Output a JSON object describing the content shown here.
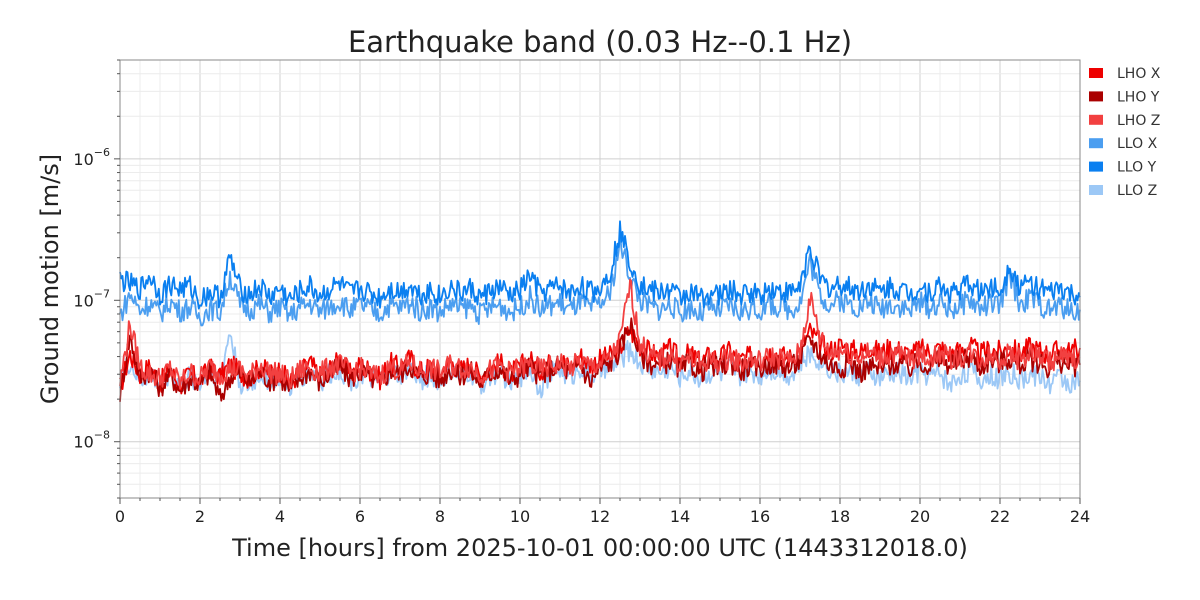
{
  "chart_data": {
    "type": "line",
    "title": "Earthquake band (0.03 Hz--0.1 Hz)",
    "xlabel": "Time [hours] from 2025-10-01 00:00:00 UTC (1443312018.0)",
    "ylabel": "Ground motion [m/s]",
    "xlim": [
      0,
      24
    ],
    "ylim": [
      4e-09,
      5e-06
    ],
    "yscale": "log",
    "x_ticks": [
      0,
      2,
      4,
      6,
      8,
      10,
      12,
      14,
      16,
      18,
      20,
      22,
      24
    ],
    "x_tick_labels": [
      "0",
      "2",
      "4",
      "6",
      "8",
      "10",
      "12",
      "14",
      "16",
      "18",
      "20",
      "22",
      "24"
    ],
    "y_ticks": [
      1e-08,
      1e-07,
      1e-06
    ],
    "y_tick_labels": [
      {
        "base": "10",
        "exp": "−8"
      },
      {
        "base": "10",
        "exp": "−7"
      },
      {
        "base": "10",
        "exp": "−6"
      }
    ],
    "grid": true,
    "legend_position": "outside-right",
    "x": [
      0,
      0.25,
      0.5,
      0.75,
      1,
      1.25,
      1.5,
      1.75,
      2,
      2.25,
      2.5,
      2.75,
      3,
      3.25,
      3.5,
      3.75,
      4,
      4.25,
      4.5,
      4.75,
      5,
      5.25,
      5.5,
      5.75,
      6,
      6.25,
      6.5,
      6.75,
      7,
      7.25,
      7.5,
      7.75,
      8,
      8.25,
      8.5,
      8.75,
      9,
      9.25,
      9.5,
      9.75,
      10,
      10.25,
      10.5,
      10.75,
      11,
      11.25,
      11.5,
      11.75,
      12,
      12.25,
      12.5,
      12.75,
      13,
      13.25,
      13.5,
      13.75,
      14,
      14.25,
      14.5,
      14.75,
      15,
      15.25,
      15.5,
      15.75,
      16,
      16.25,
      16.5,
      16.75,
      17,
      17.25,
      17.5,
      17.75,
      18,
      18.25,
      18.5,
      18.75,
      19,
      19.25,
      19.5,
      19.75,
      20,
      20.25,
      20.5,
      20.75,
      21,
      21.25,
      21.5,
      21.75,
      22,
      22.25,
      22.5,
      22.75,
      23,
      23.25,
      23.5,
      23.75,
      24
    ],
    "series": [
      {
        "name": "LHO X",
        "color": "#ee0000",
        "values": [
          2.4e-08,
          4.2e-08,
          3e-08,
          3.4e-08,
          2.6e-08,
          3.2e-08,
          2.5e-08,
          3e-08,
          2.7e-08,
          3.3e-08,
          2.9e-08,
          3.5e-08,
          3.1e-08,
          2.8e-08,
          3.4e-08,
          3e-08,
          3.2e-08,
          2.6e-08,
          3.1e-08,
          3.6e-08,
          2.9e-08,
          3.3e-08,
          3.8e-08,
          3e-08,
          3.5e-08,
          3.2e-08,
          2.8e-08,
          3.6e-08,
          3.3e-08,
          3.9e-08,
          3.1e-08,
          3.4e-08,
          3e-08,
          3.7e-08,
          3.2e-08,
          3.5e-08,
          2.9e-08,
          3.3e-08,
          3.6e-08,
          3e-08,
          3.4e-08,
          3.8e-08,
          3.2e-08,
          3.6e-08,
          3.9e-08,
          3.3e-08,
          4.1e-08,
          3.5e-08,
          3.8e-08,
          4e-08,
          4.6e-08,
          6.2e-08,
          4.8e-08,
          4.3e-08,
          4e-08,
          4.5e-08,
          3.8e-08,
          4.2e-08,
          3.6e-08,
          4.1e-08,
          3.9e-08,
          4.4e-08,
          3.7e-08,
          4e-08,
          3.8e-08,
          4.3e-08,
          4.1e-08,
          3.9e-08,
          4.5e-08,
          6e-08,
          5e-08,
          4.4e-08,
          4.8e-08,
          4.5e-08,
          4.3e-08,
          4.7e-08,
          4.2e-08,
          4.6e-08,
          4.4e-08,
          4.1e-08,
          4.5e-08,
          4.3e-08,
          4.6e-08,
          4.2e-08,
          4.4e-08,
          4.8e-08,
          4.1e-08,
          4.5e-08,
          4.3e-08,
          4.6e-08,
          4.2e-08,
          4.7e-08,
          4.4e-08,
          4.1e-08,
          4.5e-08,
          4.3e-08,
          4.6e-08
        ]
      },
      {
        "name": "LHO Y",
        "color": "#aa0000",
        "values": [
          2.2e-08,
          5.6e-08,
          2.8e-08,
          3.2e-08,
          2.4e-08,
          3e-08,
          2.3e-08,
          2.8e-08,
          2.5e-08,
          3.1e-08,
          2e-08,
          2.9e-08,
          3e-08,
          2.6e-08,
          3.1e-08,
          2.7e-08,
          2.9e-08,
          2.3e-08,
          2.8e-08,
          3.2e-08,
          2.6e-08,
          3e-08,
          3.4e-08,
          2.8e-08,
          3.1e-08,
          2.9e-08,
          2.5e-08,
          3.2e-08,
          3e-08,
          3.5e-08,
          2.8e-08,
          3.1e-08,
          2.7e-08,
          3.3e-08,
          2.9e-08,
          3.2e-08,
          2.6e-08,
          3e-08,
          3.3e-08,
          2.7e-08,
          3e-08,
          3.4e-08,
          2.9e-08,
          3.2e-08,
          3.5e-08,
          3e-08,
          3.6e-08,
          2.6e-08,
          3.3e-08,
          3.6e-08,
          4.4e-08,
          7e-08,
          4.2e-08,
          3.6e-08,
          3.4e-08,
          3.8e-08,
          3.2e-08,
          3.6e-08,
          3.1e-08,
          3.5e-08,
          3.3e-08,
          3.7e-08,
          3.2e-08,
          3.4e-08,
          3.3e-08,
          3.6e-08,
          3.5e-08,
          3.3e-08,
          3.8e-08,
          5.4e-08,
          4.2e-08,
          3.5e-08,
          3.3e-08,
          3.6e-08,
          3.1e-08,
          3.4e-08,
          3.2e-08,
          3.5e-08,
          3.6e-08,
          3.3e-08,
          3.7e-08,
          3.4e-08,
          3.8e-08,
          3.5e-08,
          3.7e-08,
          4e-08,
          3.4e-08,
          3.8e-08,
          3.6e-08,
          3.9e-08,
          3.5e-08,
          3.8e-08,
          3.6e-08,
          3.3e-08,
          3.7e-08,
          3.4e-08,
          3.5e-08
        ]
      },
      {
        "name": "LHO Z",
        "color": "#f24040",
        "values": [
          2.6e-08,
          6.8e-08,
          3.4e-08,
          3e-08,
          2.8e-08,
          3.3e-08,
          2.6e-08,
          3.1e-08,
          2.8e-08,
          3.4e-08,
          3e-08,
          3.3e-08,
          3.2e-08,
          2.9e-08,
          3.5e-08,
          3.1e-08,
          3e-08,
          2.7e-08,
          3.2e-08,
          3.4e-08,
          3e-08,
          3.4e-08,
          3.5e-08,
          3.1e-08,
          3.3e-08,
          3e-08,
          2.9e-08,
          3.4e-08,
          3.2e-08,
          3.6e-08,
          3.2e-08,
          3.3e-08,
          3.1e-08,
          3.5e-08,
          3.3e-08,
          3.4e-08,
          3e-08,
          3.2e-08,
          3.4e-08,
          3.1e-08,
          3.3e-08,
          3.5e-08,
          3.2e-08,
          3.4e-08,
          3.6e-08,
          3.3e-08,
          3.7e-08,
          3.4e-08,
          3.6e-08,
          3.8e-08,
          5.2e-08,
          1.3e-07,
          5e-08,
          4e-08,
          3.8e-08,
          4.1e-08,
          3.6e-08,
          3.9e-08,
          3.5e-08,
          3.8e-08,
          3.6e-08,
          4e-08,
          3.6e-08,
          3.8e-08,
          3.7e-08,
          4e-08,
          3.9e-08,
          3.7e-08,
          4.3e-08,
          1.05e-07,
          5.5e-08,
          4.2e-08,
          4.5e-08,
          4.2e-08,
          4e-08,
          4.3e-08,
          3.9e-08,
          4.2e-08,
          4.1e-08,
          3.8e-08,
          4.1e-08,
          3.9e-08,
          4.2e-08,
          3.9e-08,
          4e-08,
          4.3e-08,
          3.8e-08,
          4.1e-08,
          3.9e-08,
          4.2e-08,
          3.8e-08,
          4.2e-08,
          4e-08,
          3.7e-08,
          4e-08,
          3.8e-08,
          4e-08
        ]
      },
      {
        "name": "LLO X",
        "color": "#4b9ef0",
        "values": [
          7.8e-08,
          1.1e-07,
          8.5e-08,
          9.6e-08,
          8e-08,
          9.8e-08,
          8.4e-08,
          9e-08,
          7.6e-08,
          8.8e-08,
          8.2e-08,
          1.5e-07,
          9.2e-08,
          8.6e-08,
          9.4e-08,
          8.1e-08,
          9e-08,
          7.8e-08,
          8.9e-08,
          9.5e-08,
          8.3e-08,
          9.1e-08,
          9.8e-08,
          8.5e-08,
          9.2e-08,
          8.7e-08,
          8e-08,
          9.3e-08,
          8.8e-08,
          9.7e-08,
          8.4e-08,
          9e-08,
          8.2e-08,
          9.4e-08,
          8.7e-08,
          9.1e-08,
          8e-08,
          8.8e-08,
          9.3e-08,
          8.3e-08,
          8.9e-08,
          1.05e-07,
          8.6e-08,
          9.2e-08,
          9.6e-08,
          8.5e-08,
          9.8e-08,
          8.7e-08,
          9.4e-08,
          1.1e-07,
          2.6e-07,
          1.5e-07,
          1e-07,
          9e-08,
          8.6e-08,
          9.3e-08,
          8.1e-08,
          8.9e-08,
          8e-08,
          8.7e-08,
          8.4e-08,
          9.2e-08,
          8.2e-08,
          8.8e-08,
          8.5e-08,
          9.4e-08,
          8.9e-08,
          8.6e-08,
          9.7e-08,
          1.9e-07,
          1.1e-07,
          9.3e-08,
          1e-07,
          9.4e-08,
          8.9e-08,
          9.8e-08,
          8.7e-08,
          9.5e-08,
          9.1e-08,
          8.5e-08,
          9.6e-08,
          8.8e-08,
          9.7e-08,
          8.6e-08,
          9.2e-08,
          1e-07,
          8.7e-08,
          9.6e-08,
          9e-08,
          1.5e-07,
          9.4e-08,
          1.05e-07,
          9.3e-08,
          8.5e-08,
          9.2e-08,
          8.3e-08,
          8.6e-08
        ]
      },
      {
        "name": "LLO Y",
        "color": "#0a7ff0",
        "values": [
          1.4e-07,
          1.3e-07,
          1.2e-07,
          1.5e-07,
          1.1e-07,
          1.3e-07,
          1.2e-07,
          1.25e-07,
          1e-07,
          1.15e-07,
          1.05e-07,
          2e-07,
          1.2e-07,
          1.1e-07,
          1.25e-07,
          1.05e-07,
          1.2e-07,
          1e-07,
          1.15e-07,
          1.25e-07,
          1.08e-07,
          1.2e-07,
          1.3e-07,
          1.1e-07,
          1.2e-07,
          1.12e-07,
          1.04e-07,
          1.22e-07,
          1.14e-07,
          1.28e-07,
          1.1e-07,
          1.18e-07,
          1.06e-07,
          1.24e-07,
          1.12e-07,
          1.2e-07,
          1.04e-07,
          1.16e-07,
          1.22e-07,
          1.08e-07,
          1.17e-07,
          1.5e-07,
          1.12e-07,
          1.2e-07,
          1.26e-07,
          1.1e-07,
          1.28e-07,
          1.14e-07,
          1.22e-07,
          1.6e-07,
          3.1e-07,
          1.9e-07,
          1.3e-07,
          1.18e-07,
          1.12e-07,
          1.2e-07,
          1.04e-07,
          1.15e-07,
          1.03e-07,
          1.13e-07,
          1.08e-07,
          1.2e-07,
          1.06e-07,
          1.15e-07,
          1.1e-07,
          1.22e-07,
          1.16e-07,
          1.12e-07,
          1.26e-07,
          2.4e-07,
          1.4e-07,
          1.2e-07,
          1.3e-07,
          1.22e-07,
          1.16e-07,
          1.28e-07,
          1.13e-07,
          1.24e-07,
          1.18e-07,
          1.1e-07,
          1.25e-07,
          1.14e-07,
          1.26e-07,
          1.12e-07,
          1.2e-07,
          1.32e-07,
          1.13e-07,
          1.25e-07,
          1.17e-07,
          1.8e-07,
          1.22e-07,
          1.35e-07,
          1.2e-07,
          1.1e-07,
          1.2e-07,
          1.08e-07,
          1.05e-07
        ]
      },
      {
        "name": "LLO Z",
        "color": "#9cc8f6",
        "values": [
          2.8e-08,
          3.6e-08,
          2.6e-08,
          3e-08,
          2.5e-08,
          3.1e-08,
          2.4e-08,
          2.9e-08,
          2.6e-08,
          3.2e-08,
          2.8e-08,
          6e-08,
          2.6e-08,
          2.4e-08,
          3e-08,
          2.7e-08,
          2.9e-08,
          2.4e-08,
          2.8e-08,
          3.2e-08,
          2.6e-08,
          3e-08,
          3.3e-08,
          2.7e-08,
          3e-08,
          2.8e-08,
          2.5e-08,
          3.1e-08,
          2.9e-08,
          3.4e-08,
          2.7e-08,
          3e-08,
          2.6e-08,
          3.2e-08,
          2.8e-08,
          3.1e-08,
          2.5e-08,
          2.9e-08,
          3.2e-08,
          2.6e-08,
          2.9e-08,
          3.3e-08,
          2.4e-08,
          3e-08,
          3.3e-08,
          2.8e-08,
          3.4e-08,
          2.9e-08,
          3.2e-08,
          3.3e-08,
          3.8e-08,
          4.5e-08,
          3.6e-08,
          3.3e-08,
          3.1e-08,
          3.4e-08,
          2.9e-08,
          3.2e-08,
          2.8e-08,
          3.1e-08,
          3e-08,
          3.3e-08,
          2.9e-08,
          3.1e-08,
          3e-08,
          3.3e-08,
          3.2e-08,
          3e-08,
          3.5e-08,
          4.2e-08,
          3.8e-08,
          3.3e-08,
          3e-08,
          3.2e-08,
          2.9e-08,
          3.1e-08,
          2.8e-08,
          3e-08,
          3.1e-08,
          2.8e-08,
          3.2e-08,
          2.9e-08,
          3.1e-08,
          2.5e-08,
          3e-08,
          3.2e-08,
          2.7e-08,
          3e-08,
          2.8e-08,
          3.1e-08,
          2.7e-08,
          3e-08,
          2.9e-08,
          2.6e-08,
          2.9e-08,
          2.6e-08,
          2.7e-08
        ]
      }
    ]
  }
}
